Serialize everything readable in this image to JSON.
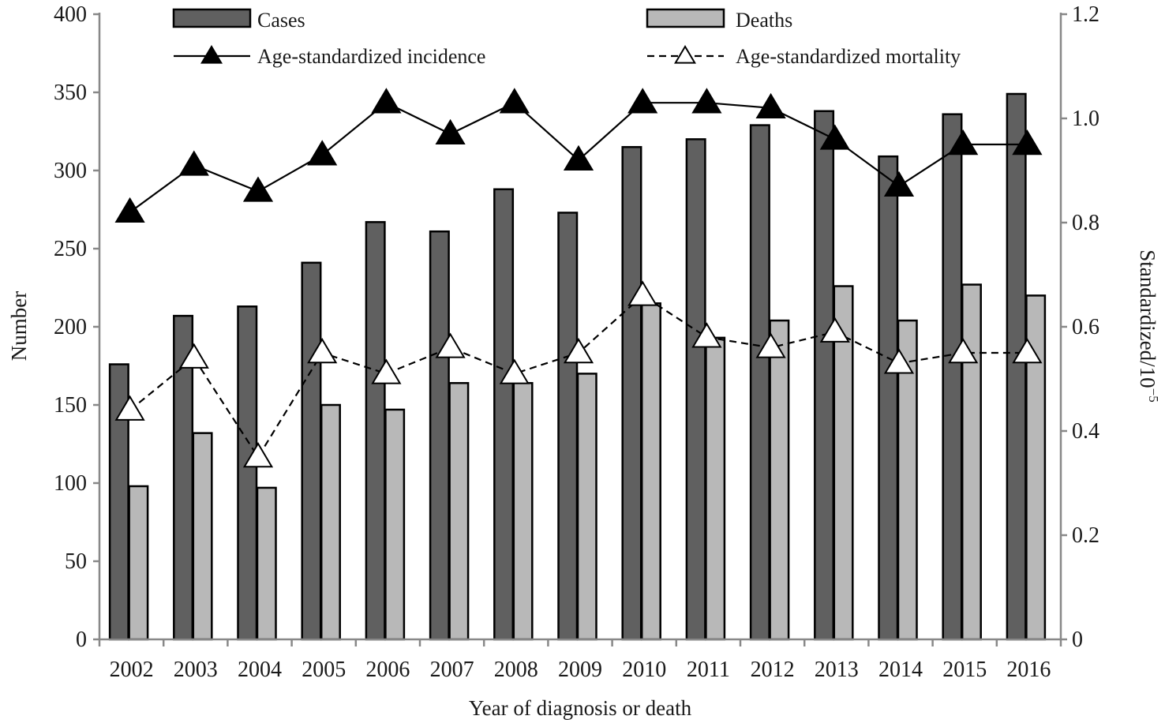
{
  "chart_data": {
    "type": "bar",
    "title": "",
    "categories": [
      "2002",
      "2003",
      "2004",
      "2005",
      "2006",
      "2007",
      "2008",
      "2009",
      "2010",
      "2011",
      "2012",
      "2013",
      "2014",
      "2015",
      "2016"
    ],
    "xlabel": "Year of diagnosis or death",
    "ylabel": "Number",
    "y2label": "Standardized/10",
    "y2label_superscript": "−5",
    "ylim": [
      0,
      400
    ],
    "y2lim": [
      0,
      1.2
    ],
    "yticks": [
      "0",
      "50",
      "100",
      "150",
      "200",
      "250",
      "300",
      "350",
      "400"
    ],
    "y2ticks": [
      "0",
      "0.2",
      "0.4",
      "0.6",
      "0.8",
      "1.0",
      "1.2"
    ],
    "grid": false,
    "legend_position": "top",
    "series": [
      {
        "name": "Cases",
        "kind": "bar",
        "axis": "left",
        "color": "#606060",
        "values": [
          176,
          207,
          213,
          241,
          267,
          261,
          288,
          273,
          315,
          320,
          329,
          338,
          309,
          336,
          349
        ]
      },
      {
        "name": "Deaths",
        "kind": "bar",
        "axis": "left",
        "color": "#b8b8b8",
        "values": [
          98,
          132,
          97,
          150,
          147,
          164,
          164,
          170,
          215,
          193,
          204,
          226,
          204,
          227,
          220
        ]
      },
      {
        "name": "Age-standardized incidence",
        "kind": "line",
        "axis": "right",
        "marker": "filled-triangle",
        "dash": "solid",
        "color": "#000000",
        "values": [
          0.82,
          0.91,
          0.86,
          0.93,
          1.03,
          0.97,
          1.03,
          0.92,
          1.03,
          1.03,
          1.02,
          0.96,
          0.87,
          0.95,
          0.95
        ]
      },
      {
        "name": "Age-standardized mortality",
        "kind": "line",
        "axis": "right",
        "marker": "open-triangle",
        "dash": "dashed",
        "color": "#000000",
        "values": [
          0.44,
          0.54,
          0.35,
          0.55,
          0.51,
          0.56,
          0.51,
          0.55,
          0.66,
          0.58,
          0.56,
          0.59,
          0.53,
          0.55,
          0.55
        ]
      }
    ]
  }
}
